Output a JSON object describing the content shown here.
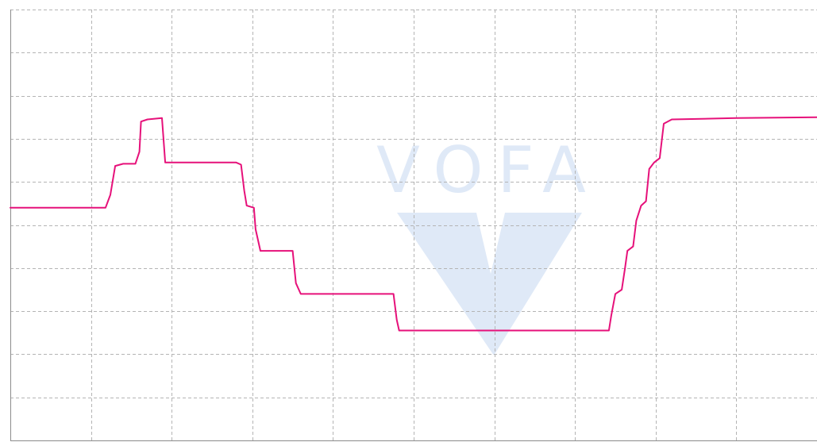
{
  "watermark": {
    "text": "VOFA",
    "color": "#dfe9f7"
  },
  "chart_data": {
    "type": "line",
    "title": "",
    "xlabel": "",
    "ylabel": "",
    "xlim": [
      0,
      10
    ],
    "ylim": [
      0,
      10
    ],
    "x_gridlines": [
      1,
      2,
      3,
      4,
      5,
      6,
      7,
      8,
      9,
      10
    ],
    "y_gridlines": [
      1,
      2,
      3,
      4,
      5,
      6,
      7,
      8,
      9,
      10
    ],
    "grid": true,
    "series": [
      {
        "color": "#e6117a",
        "points": [
          [
            0.0,
            5.4
          ],
          [
            1.18,
            5.4
          ],
          [
            1.24,
            5.7
          ],
          [
            1.3,
            6.37
          ],
          [
            1.4,
            6.42
          ],
          [
            1.55,
            6.42
          ],
          [
            1.6,
            6.7
          ],
          [
            1.62,
            7.4
          ],
          [
            1.7,
            7.45
          ],
          [
            1.88,
            7.48
          ],
          [
            1.92,
            6.45
          ],
          [
            2.4,
            6.45
          ],
          [
            2.8,
            6.45
          ],
          [
            2.86,
            6.4
          ],
          [
            2.9,
            5.8
          ],
          [
            2.93,
            5.45
          ],
          [
            3.02,
            5.4
          ],
          [
            3.04,
            4.9
          ],
          [
            3.1,
            4.4
          ],
          [
            3.5,
            4.4
          ],
          [
            3.54,
            3.65
          ],
          [
            3.6,
            3.4
          ],
          [
            4.75,
            3.4
          ],
          [
            4.79,
            2.8
          ],
          [
            4.82,
            2.55
          ],
          [
            7.42,
            2.55
          ],
          [
            7.45,
            2.9
          ],
          [
            7.5,
            3.4
          ],
          [
            7.58,
            3.5
          ],
          [
            7.62,
            4.0
          ],
          [
            7.65,
            4.4
          ],
          [
            7.72,
            4.5
          ],
          [
            7.76,
            5.1
          ],
          [
            7.82,
            5.45
          ],
          [
            7.88,
            5.55
          ],
          [
            7.92,
            6.3
          ],
          [
            7.98,
            6.45
          ],
          [
            8.05,
            6.55
          ],
          [
            8.1,
            7.35
          ],
          [
            8.2,
            7.45
          ],
          [
            9.0,
            7.48
          ],
          [
            10.0,
            7.5
          ]
        ]
      }
    ]
  }
}
